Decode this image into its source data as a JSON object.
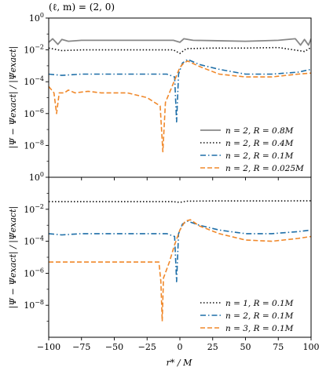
{
  "figure": {
    "title": "(ℓ, m) = (2, 0)",
    "xlabel": "r* / M",
    "ylabel": "|Ψ − Ψexact| / |Ψexact|"
  },
  "chart_data": [
    {
      "type": "line",
      "title": "(ℓ, m) = (2, 0)",
      "xlabel": "r* / M",
      "ylabel": "|Ψ − Ψexact| / |Ψexact|",
      "xlim": [
        -100,
        100
      ],
      "ylim": [
        1e-10,
        1
      ],
      "yscale": "log",
      "xticks": [
        -100,
        -75,
        -50,
        -25,
        0,
        25,
        50,
        75,
        100
      ],
      "yticks": [
        "10^0",
        "10^-2",
        "10^-4",
        "10^-6",
        "10^-8"
      ],
      "legend_position": "lower right",
      "series": [
        {
          "name": "n = 2, R = 0.8M",
          "color": "#888888",
          "style": "solid",
          "points": [
            [
              -100,
              0.03
            ],
            [
              -97,
              0.05
            ],
            [
              -93,
              0.022
            ],
            [
              -90,
              0.045
            ],
            [
              -85,
              0.035
            ],
            [
              -75,
              0.04
            ],
            [
              -50,
              0.04
            ],
            [
              -25,
              0.04
            ],
            [
              -5,
              0.04
            ],
            [
              0,
              0.03
            ],
            [
              3,
              0.05
            ],
            [
              10,
              0.04
            ],
            [
              25,
              0.038
            ],
            [
              50,
              0.035
            ],
            [
              75,
              0.04
            ],
            [
              88,
              0.05
            ],
            [
              92,
              0.02
            ],
            [
              95,
              0.045
            ],
            [
              98,
              0.02
            ],
            [
              100,
              0.05
            ]
          ]
        },
        {
          "name": "n = 2, R = 0.4M",
          "color": "#111111",
          "style": "dotted",
          "points": [
            [
              -100,
              0.013
            ],
            [
              -90,
              0.009
            ],
            [
              -75,
              0.01
            ],
            [
              -50,
              0.01
            ],
            [
              -25,
              0.01
            ],
            [
              -5,
              0.01
            ],
            [
              0,
              0.006
            ],
            [
              5,
              0.012
            ],
            [
              25,
              0.013
            ],
            [
              50,
              0.013
            ],
            [
              75,
              0.014
            ],
            [
              95,
              0.008
            ],
            [
              100,
              0.014
            ]
          ]
        },
        {
          "name": "n = 2, R = 0.1M",
          "color": "#1f6fa8",
          "style": "dashdot",
          "points": [
            [
              -100,
              0.0003
            ],
            [
              -90,
              0.00025
            ],
            [
              -75,
              0.0003
            ],
            [
              -50,
              0.0003
            ],
            [
              -25,
              0.0003
            ],
            [
              -10,
              0.0003
            ],
            [
              -4,
              0.0002
            ],
            [
              -2.5,
              3e-07
            ],
            [
              -1,
              0.0003
            ],
            [
              2,
              0.0015
            ],
            [
              6,
              0.0025
            ],
            [
              15,
              0.0012
            ],
            [
              30,
              0.0006
            ],
            [
              50,
              0.0003
            ],
            [
              70,
              0.0003
            ],
            [
              90,
              0.0004
            ],
            [
              100,
              0.0006
            ]
          ]
        },
        {
          "name": "n = 2, R = 0.025M",
          "color": "#f0882a",
          "style": "dashed",
          "points": [
            [
              -100,
              5e-05
            ],
            [
              -96,
              2e-05
            ],
            [
              -94,
              1e-06
            ],
            [
              -92,
              2e-05
            ],
            [
              -88,
              2e-05
            ],
            [
              -85,
              3e-05
            ],
            [
              -80,
              2e-05
            ],
            [
              -70,
              2.5e-05
            ],
            [
              -60,
              2e-05
            ],
            [
              -40,
              2e-05
            ],
            [
              -25,
              1e-05
            ],
            [
              -15,
              3e-06
            ],
            [
              -13,
              4e-09
            ],
            [
              -11,
              5e-06
            ],
            [
              -5,
              8e-05
            ],
            [
              0,
              0.0008
            ],
            [
              3,
              0.0015
            ],
            [
              6,
              0.002
            ],
            [
              15,
              0.0009
            ],
            [
              30,
              0.0003
            ],
            [
              50,
              0.0002
            ],
            [
              70,
              0.0002
            ],
            [
              90,
              0.0003
            ],
            [
              100,
              0.00035
            ]
          ]
        }
      ]
    },
    {
      "type": "line",
      "xlabel": "r* / M",
      "ylabel": "|Ψ − Ψexact| / |Ψexact|",
      "xlim": [
        -100,
        100
      ],
      "ylim": [
        1e-10,
        1
      ],
      "yscale": "log",
      "xticks": [
        -100,
        -75,
        -50,
        -25,
        0,
        25,
        50,
        75,
        100
      ],
      "yticks": [
        "10^0",
        "10^-2",
        "10^-4",
        "10^-6",
        "10^-8"
      ],
      "legend_position": "lower right",
      "series": [
        {
          "name": "n = 1, R = 0.1M",
          "color": "#111111",
          "style": "dotted",
          "points": [
            [
              -100,
              0.03
            ],
            [
              -75,
              0.03
            ],
            [
              -50,
              0.03
            ],
            [
              -25,
              0.03
            ],
            [
              -5,
              0.03
            ],
            [
              0,
              0.027
            ],
            [
              5,
              0.032
            ],
            [
              25,
              0.033
            ],
            [
              50,
              0.033
            ],
            [
              75,
              0.033
            ],
            [
              100,
              0.034
            ]
          ]
        },
        {
          "name": "n = 2, R = 0.1M",
          "color": "#1f6fa8",
          "style": "dashdot",
          "points": [
            [
              -100,
              0.0003
            ],
            [
              -90,
              0.00025
            ],
            [
              -75,
              0.0003
            ],
            [
              -50,
              0.0003
            ],
            [
              -25,
              0.0003
            ],
            [
              -10,
              0.0003
            ],
            [
              -4,
              0.0002
            ],
            [
              -2.5,
              3e-07
            ],
            [
              -1,
              0.0003
            ],
            [
              2,
              0.0012
            ],
            [
              6,
              0.0018
            ],
            [
              15,
              0.001
            ],
            [
              30,
              0.0005
            ],
            [
              50,
              0.0003
            ],
            [
              70,
              0.0003
            ],
            [
              90,
              0.0004
            ],
            [
              100,
              0.0005
            ]
          ]
        },
        {
          "name": "n = 3, R = 0.1M",
          "color": "#f0882a",
          "style": "dashed",
          "points": [
            [
              -100,
              5e-06
            ],
            [
              -75,
              5e-06
            ],
            [
              -50,
              5e-06
            ],
            [
              -25,
              5e-06
            ],
            [
              -16,
              5e-06
            ],
            [
              -14.5,
              3e-07
            ],
            [
              -13.5,
              1e-09
            ],
            [
              -12.5,
              5e-07
            ],
            [
              -8,
              5e-06
            ],
            [
              -4,
              6e-05
            ],
            [
              0,
              0.0005
            ],
            [
              4,
              0.0018
            ],
            [
              8,
              0.0022
            ],
            [
              15,
              0.0009
            ],
            [
              30,
              0.0003
            ],
            [
              50,
              0.00012
            ],
            [
              70,
              0.0001
            ],
            [
              90,
              0.00015
            ],
            [
              100,
              0.0002
            ]
          ]
        }
      ]
    }
  ]
}
